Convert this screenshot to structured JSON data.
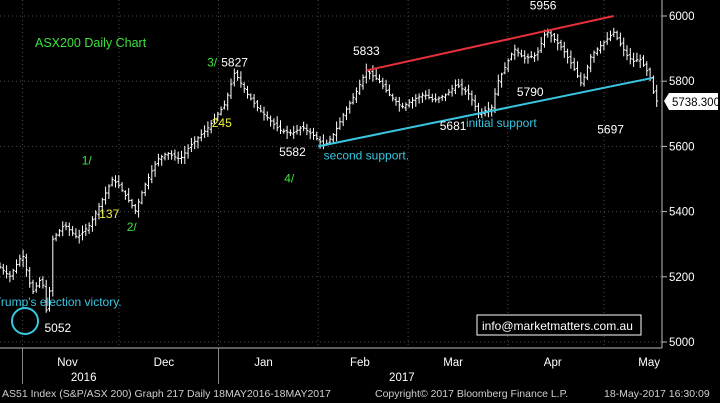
{
  "chart_data": {
    "type": "ohlc",
    "title": "ASX200 Daily Chart",
    "y_ticks": [
      5000,
      5200,
      5400,
      5600,
      5800,
      6000
    ],
    "ylim": [
      4980,
      6055
    ],
    "x_month_labels": [
      "Nov",
      "Dec",
      "Jan",
      "Feb",
      "Mar",
      "Apr",
      "May"
    ],
    "x_year_labels": [
      "2016",
      "2017"
    ],
    "last_price": "5738.300",
    "last_value": 5738.3,
    "grid": true,
    "colors": {
      "background": "#000000",
      "bars": "#ffffff",
      "grid": "#4a4a4a",
      "resistance_line": "#e8303a",
      "support_line": "#39c6e0",
      "label_white": "#ffffff",
      "label_yellow": "#f2f23a",
      "label_green": "#3ee23e",
      "label_cyan": "#39c6e0"
    },
    "price_path": [
      {
        "t": "2016-10-25",
        "v": 5230
      },
      {
        "t": "2016-10-28",
        "v": 5200
      },
      {
        "t": "2016-11-01",
        "v": 5270
      },
      {
        "t": "2016-11-04",
        "v": 5150
      },
      {
        "t": "2016-11-07",
        "v": 5200
      },
      {
        "t": "2016-11-09",
        "v": 5052
      },
      {
        "t": "2016-11-10",
        "v": 5310
      },
      {
        "t": "2016-11-14",
        "v": 5360
      },
      {
        "t": "2016-11-18",
        "v": 5320
      },
      {
        "t": "2016-11-22",
        "v": 5360
      },
      {
        "t": "2016-11-25",
        "v": 5420
      },
      {
        "t": "2016-11-29",
        "v": 5500
      },
      {
        "t": "2016-12-01",
        "v": 5480
      },
      {
        "t": "2016-12-05",
        "v": 5420
      },
      {
        "t": "2016-12-06",
        "v": 5400
      },
      {
        "t": "2016-12-09",
        "v": 5480
      },
      {
        "t": "2016-12-13",
        "v": 5560
      },
      {
        "t": "2016-12-16",
        "v": 5580
      },
      {
        "t": "2016-12-20",
        "v": 5560
      },
      {
        "t": "2016-12-23",
        "v": 5600
      },
      {
        "t": "2016-12-29",
        "v": 5660
      },
      {
        "t": "2017-01-03",
        "v": 5730
      },
      {
        "t": "2017-01-06",
        "v": 5827
      },
      {
        "t": "2017-01-10",
        "v": 5760
      },
      {
        "t": "2017-01-13",
        "v": 5720
      },
      {
        "t": "2017-01-17",
        "v": 5680
      },
      {
        "t": "2017-01-20",
        "v": 5650
      },
      {
        "t": "2017-01-24",
        "v": 5640
      },
      {
        "t": "2017-01-27",
        "v": 5660
      },
      {
        "t": "2017-01-31",
        "v": 5630
      },
      {
        "t": "2017-02-03",
        "v": 5600
      },
      {
        "t": "2017-02-06",
        "v": 5640
      },
      {
        "t": "2017-02-09",
        "v": 5700
      },
      {
        "t": "2017-02-13",
        "v": 5770
      },
      {
        "t": "2017-02-16",
        "v": 5833
      },
      {
        "t": "2017-02-20",
        "v": 5800
      },
      {
        "t": "2017-02-23",
        "v": 5760
      },
      {
        "t": "2017-02-27",
        "v": 5720
      },
      {
        "t": "2017-03-02",
        "v": 5740
      },
      {
        "t": "2017-03-06",
        "v": 5760
      },
      {
        "t": "2017-03-09",
        "v": 5740
      },
      {
        "t": "2017-03-13",
        "v": 5760
      },
      {
        "t": "2017-03-16",
        "v": 5790
      },
      {
        "t": "2017-03-20",
        "v": 5760
      },
      {
        "t": "2017-03-23",
        "v": 5700
      },
      {
        "t": "2017-03-27",
        "v": 5720
      },
      {
        "t": "2017-03-29",
        "v": 5800
      },
      {
        "t": "2017-04-03",
        "v": 5900
      },
      {
        "t": "2017-04-06",
        "v": 5870
      },
      {
        "t": "2017-04-10",
        "v": 5880
      },
      {
        "t": "2017-04-13",
        "v": 5956
      },
      {
        "t": "2017-04-18",
        "v": 5900
      },
      {
        "t": "2017-04-21",
        "v": 5850
      },
      {
        "t": "2017-04-24",
        "v": 5790
      },
      {
        "t": "2017-04-27",
        "v": 5880
      },
      {
        "t": "2017-05-01",
        "v": 5920
      },
      {
        "t": "2017-05-04",
        "v": 5950
      },
      {
        "t": "2017-05-08",
        "v": 5880
      },
      {
        "t": "2017-05-10",
        "v": 5860
      },
      {
        "t": "2017-05-12",
        "v": 5870
      },
      {
        "t": "2017-05-15",
        "v": 5820
      },
      {
        "t": "2017-05-17",
        "v": 5740
      },
      {
        "t": "2017-05-18",
        "v": 5738.3
      }
    ],
    "trendlines": [
      {
        "name": "resistance",
        "from": {
          "t": "2017-02-16",
          "v": 5833
        },
        "to": {
          "t": "2017-05-04",
          "v": 6000
        }
      },
      {
        "name": "support",
        "from": {
          "t": "2017-02-01",
          "v": 5600
        },
        "to": {
          "t": "2017-05-16",
          "v": 5810
        }
      }
    ],
    "annotations": [
      {
        "text": "5052",
        "t": "2016-11-12",
        "v": 5030,
        "color": "label_white"
      },
      {
        "text": "Trump's election victory.",
        "t": "2016-11-12",
        "v": 5110,
        "color": "label_cyan"
      },
      {
        "text": "1/",
        "t": "2016-11-21",
        "v": 5545,
        "color": "label_green"
      },
      {
        "text": "137",
        "t": "2016-11-28",
        "v": 5380,
        "color": "label_yellow"
      },
      {
        "text": "2/",
        "t": "2016-12-05",
        "v": 5340,
        "color": "label_green"
      },
      {
        "text": "3/",
        "t": "2016-12-30",
        "v": 5845,
        "color": "label_green"
      },
      {
        "text": "5827",
        "t": "2017-01-06",
        "v": 5845,
        "color": "label_white"
      },
      {
        "text": "245",
        "t": "2017-01-02",
        "v": 5660,
        "color": "label_yellow"
      },
      {
        "text": "5582",
        "t": "2017-01-24",
        "v": 5570,
        "color": "label_white"
      },
      {
        "text": "4/",
        "t": "2017-01-23",
        "v": 5490,
        "color": "label_green"
      },
      {
        "text": "5833",
        "t": "2017-02-16",
        "v": 5880,
        "color": "label_white"
      },
      {
        "text": "second support.",
        "t": "2017-02-16",
        "v": 5560,
        "color": "label_cyan"
      },
      {
        "text": "5681",
        "t": "2017-03-15",
        "v": 5650,
        "color": "label_white"
      },
      {
        "text": "initial support",
        "t": "2017-03-30",
        "v": 5660,
        "color": "label_cyan"
      },
      {
        "text": "5956",
        "t": "2017-04-12",
        "v": 6020,
        "color": "label_white"
      },
      {
        "text": "5790",
        "t": "2017-04-08",
        "v": 5755,
        "color": "label_white"
      },
      {
        "text": "5697",
        "t": "2017-05-03",
        "v": 5640,
        "color": "label_white"
      }
    ],
    "watermark": "info@marketmatters.com.au"
  },
  "footer": {
    "left": "AS51 Index (S&P/ASX 200) Graph 217  Daily 18MAY2016-18MAY2017",
    "center": "Copyright© 2017 Bloomberg Finance L.P.",
    "right": "18-May-2017 16:30:09"
  }
}
